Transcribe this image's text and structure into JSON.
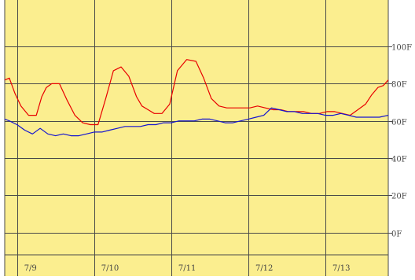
{
  "colors": {
    "plot_bg": "#fbee8f",
    "grid": "#4a4a4a",
    "series_a": "#e80000",
    "series_b": "#1414d0",
    "text": "#444444"
  },
  "chart_data": {
    "type": "line",
    "title": "",
    "xlabel": "",
    "ylabel": "",
    "x_unit": "day",
    "xlim": [
      8.84,
      13.815
    ],
    "ylim": [
      -12,
      125
    ],
    "x_ticks": [
      {
        "value": 9,
        "label": "7/9"
      },
      {
        "value": 10,
        "label": "7/10"
      },
      {
        "value": 11,
        "label": "7/11"
      },
      {
        "value": 12,
        "label": "7/12"
      },
      {
        "value": 13,
        "label": "7/13"
      }
    ],
    "y_ticks": [
      {
        "value": 0,
        "label": "0F"
      },
      {
        "value": 20,
        "label": "20F"
      },
      {
        "value": 40,
        "label": "40F"
      },
      {
        "value": 60,
        "label": "60F"
      },
      {
        "value": 80,
        "label": "80F"
      },
      {
        "value": 100,
        "label": "100F"
      }
    ],
    "grid": true,
    "legend": "none",
    "series": [
      {
        "x": [
          8.84,
          8.9,
          8.97,
          9.05,
          9.15,
          9.25,
          9.32,
          9.38,
          9.45,
          9.55,
          9.65,
          9.75,
          9.85,
          9.95,
          10.05,
          10.15,
          10.25,
          10.35,
          10.45,
          10.55,
          10.62,
          10.7,
          10.78,
          10.88,
          10.98,
          11.08,
          11.2,
          11.32,
          11.42,
          11.52,
          11.62,
          11.72,
          11.82,
          11.92,
          12.02,
          12.12,
          12.22,
          12.32,
          12.42,
          12.52,
          12.62,
          12.72,
          12.82,
          12.92,
          13.02,
          13.12,
          13.22,
          13.32,
          13.42,
          13.52,
          13.6,
          13.68,
          13.75,
          13.815
        ],
        "y": [
          82,
          83,
          75,
          68,
          63,
          63,
          73,
          78,
          80,
          80,
          71,
          63,
          59,
          58,
          58,
          72,
          87,
          89,
          84,
          73,
          68,
          66,
          64,
          64,
          69,
          87,
          93,
          92,
          83,
          72,
          68,
          67,
          67,
          67,
          67,
          68,
          67,
          66,
          66,
          65,
          65,
          65,
          64,
          64,
          65,
          65,
          64,
          63,
          66,
          69,
          74,
          78,
          79,
          82
        ]
      },
      {
        "x": [
          8.84,
          8.9,
          9.0,
          9.1,
          9.2,
          9.3,
          9.4,
          9.5,
          9.6,
          9.7,
          9.8,
          9.9,
          10.0,
          10.1,
          10.2,
          10.3,
          10.4,
          10.5,
          10.6,
          10.7,
          10.8,
          10.9,
          11.0,
          11.1,
          11.2,
          11.3,
          11.4,
          11.5,
          11.6,
          11.7,
          11.8,
          11.9,
          12.0,
          12.1,
          12.2,
          12.3,
          12.4,
          12.5,
          12.6,
          12.7,
          12.8,
          12.9,
          13.0,
          13.1,
          13.2,
          13.3,
          13.4,
          13.5,
          13.6,
          13.7,
          13.815
        ],
        "y": [
          61,
          60,
          58,
          55,
          53,
          56,
          53,
          52,
          53,
          52,
          52,
          53,
          54,
          54,
          55,
          56,
          57,
          57,
          57,
          58,
          58,
          59,
          59,
          60,
          60,
          60,
          61,
          61,
          60,
          59,
          59,
          60,
          61,
          62,
          63,
          67,
          66,
          65,
          65,
          64,
          64,
          64,
          63,
          63,
          64,
          63,
          62,
          62,
          62,
          62,
          63
        ]
      }
    ]
  }
}
